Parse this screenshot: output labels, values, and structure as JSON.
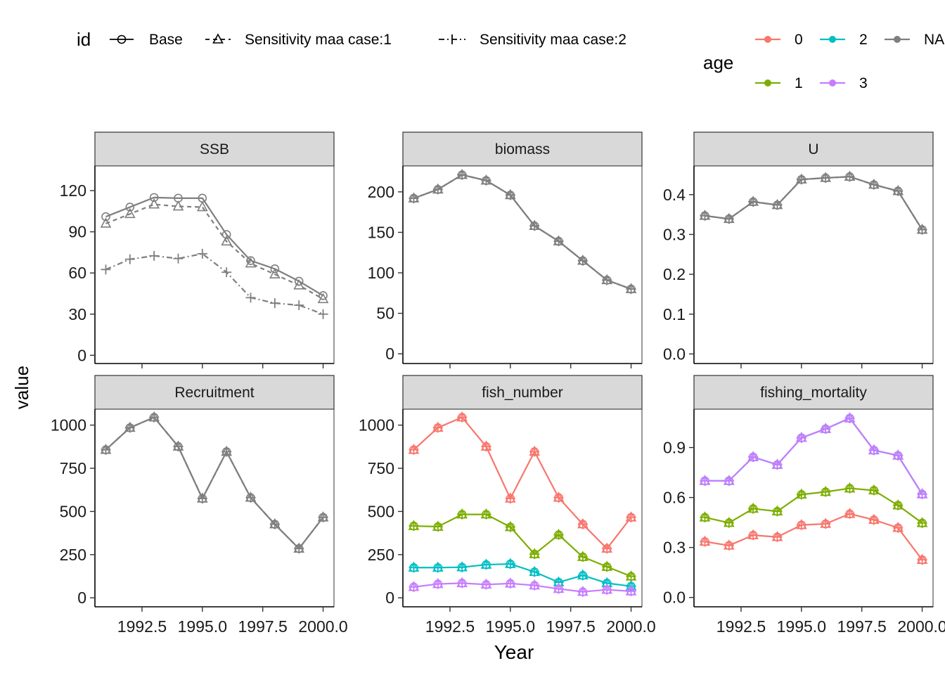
{
  "colors": {
    "age_0": "#F8766D",
    "age_1": "#7CAE00",
    "age_2": "#00BFC4",
    "age_3": "#C77CFF",
    "age_NA": "#7F7F7F",
    "strip_fill": "#D9D9D9"
  },
  "legend": {
    "id_title": "id",
    "id_items": [
      "Base",
      "Sensitivity maa case:1",
      "Sensitivity maa case:2"
    ],
    "age_title": "age",
    "age_items": [
      "0",
      "2",
      "NA",
      "1",
      "3"
    ]
  },
  "axes": {
    "xlabel": "Year",
    "ylabel": "value",
    "x_ticks": [
      "1992.5",
      "1995.0",
      "1997.5",
      "2000.0"
    ]
  },
  "chart_data": [
    {
      "type": "line",
      "title": "SSB",
      "x": [
        1991,
        1992,
        1993,
        1994,
        1995,
        1996,
        1997,
        1998,
        1999,
        2000
      ],
      "ylim": [
        -6,
        138
      ],
      "y_ticks": [
        "0",
        "30",
        "60",
        "90",
        "120"
      ],
      "series": [
        {
          "name": "Base",
          "age": "NA",
          "values": [
            101,
            108,
            115,
            114.5,
            114.5,
            88,
            69,
            63,
            54,
            43.5
          ]
        },
        {
          "name": "Sensitivity maa case:1",
          "age": "NA",
          "values": [
            96,
            103,
            110,
            108.5,
            108,
            83,
            67,
            59,
            51,
            41
          ]
        },
        {
          "name": "Sensitivity maa case:2",
          "age": "NA",
          "values": [
            62.5,
            70,
            72.5,
            70.5,
            74,
            60.5,
            42,
            38,
            36.5,
            30
          ]
        }
      ]
    },
    {
      "type": "line",
      "title": "biomass",
      "x": [
        1991,
        1992,
        1993,
        1994,
        1995,
        1996,
        1997,
        1998,
        1999,
        2000
      ],
      "ylim": [
        -12,
        232
      ],
      "y_ticks": [
        "0",
        "50",
        "100",
        "150",
        "200"
      ],
      "series": [
        {
          "name": "Base",
          "age": "NA",
          "values": [
            192,
            203,
            221,
            214,
            196,
            158,
            139,
            115,
            91,
            80
          ]
        },
        {
          "name": "Sensitivity maa case:1",
          "age": "NA",
          "values": [
            192,
            203,
            221,
            214,
            196,
            158,
            139,
            115,
            91,
            80
          ]
        },
        {
          "name": "Sensitivity maa case:2",
          "age": "NA",
          "values": [
            192,
            203,
            221,
            214,
            196,
            158,
            139,
            115,
            91,
            80
          ]
        }
      ]
    },
    {
      "type": "line",
      "title": "U",
      "x": [
        1991,
        1992,
        1993,
        1994,
        1995,
        1996,
        1997,
        1998,
        1999,
        2000
      ],
      "ylim": [
        -0.024,
        0.472
      ],
      "y_ticks": [
        "0.0",
        "0.1",
        "0.2",
        "0.3",
        "0.4"
      ],
      "series": [
        {
          "name": "Base",
          "age": "NA",
          "values": [
            0.347,
            0.339,
            0.382,
            0.374,
            0.438,
            0.442,
            0.445,
            0.425,
            0.409,
            0.312
          ]
        },
        {
          "name": "Sensitivity maa case:1",
          "age": "NA",
          "values": [
            0.347,
            0.339,
            0.382,
            0.374,
            0.438,
            0.442,
            0.445,
            0.425,
            0.409,
            0.312
          ]
        },
        {
          "name": "Sensitivity maa case:2",
          "age": "NA",
          "values": [
            0.347,
            0.339,
            0.382,
            0.374,
            0.438,
            0.442,
            0.445,
            0.425,
            0.409,
            0.312
          ]
        }
      ]
    },
    {
      "type": "line",
      "title": "Recruitment",
      "x": [
        1991,
        1992,
        1993,
        1994,
        1995,
        1996,
        1997,
        1998,
        1999,
        2000
      ],
      "ylim": [
        -52,
        1092
      ],
      "y_ticks": [
        "0",
        "250",
        "500",
        "750",
        "1000"
      ],
      "series": [
        {
          "name": "Base",
          "age": "NA",
          "values": [
            857,
            985,
            1045,
            876,
            575,
            846,
            580,
            426,
            285,
            466
          ]
        },
        {
          "name": "Sensitivity maa case:1",
          "age": "NA",
          "values": [
            857,
            985,
            1045,
            876,
            575,
            846,
            580,
            426,
            285,
            466
          ]
        },
        {
          "name": "Sensitivity maa case:2",
          "age": "NA",
          "values": [
            857,
            985,
            1045,
            876,
            575,
            846,
            580,
            426,
            285,
            466
          ]
        }
      ]
    },
    {
      "type": "line",
      "title": "fish_number",
      "x": [
        1991,
        1992,
        1993,
        1994,
        1995,
        1996,
        1997,
        1998,
        1999,
        2000
      ],
      "ylim": [
        -52,
        1092
      ],
      "y_ticks": [
        "0",
        "250",
        "500",
        "750",
        "1000"
      ],
      "series": [
        {
          "name": "Base",
          "age": "0",
          "values": [
            857,
            985,
            1045,
            876,
            575,
            846,
            580,
            426,
            285,
            466
          ]
        },
        {
          "name": "Base",
          "age": "1",
          "values": [
            416,
            412,
            483,
            483,
            410,
            253,
            365,
            237,
            180,
            124
          ]
        },
        {
          "name": "Base",
          "age": "2",
          "values": [
            175,
            175,
            177,
            192,
            196,
            150,
            90,
            130,
            85,
            67
          ]
        },
        {
          "name": "Base",
          "age": "3",
          "values": [
            63,
            80,
            85,
            77,
            83,
            72,
            52,
            35,
            47,
            38
          ]
        }
      ]
    },
    {
      "type": "line",
      "title": "fishing_mortality",
      "x": [
        1991,
        1992,
        1993,
        1994,
        1995,
        1996,
        1997,
        1998,
        1999,
        2000
      ],
      "ylim": [
        -0.056,
        1.13
      ],
      "y_ticks": [
        "0.0",
        "0.3",
        "0.6",
        "0.9"
      ],
      "series": [
        {
          "name": "Base",
          "age": "0",
          "values": [
            0.335,
            0.312,
            0.374,
            0.363,
            0.435,
            0.442,
            0.502,
            0.466,
            0.418,
            0.226
          ]
        },
        {
          "name": "Base",
          "age": "1",
          "values": [
            0.481,
            0.448,
            0.533,
            0.517,
            0.618,
            0.634,
            0.655,
            0.643,
            0.553,
            0.447
          ]
        },
        {
          "name": "Base",
          "age": "2",
          "values": [
            0.7,
            0.7,
            0.843,
            0.797,
            0.958,
            1.012,
            1.076,
            0.884,
            0.852,
            0.62
          ]
        },
        {
          "name": "Base",
          "age": "3",
          "values": [
            0.7,
            0.7,
            0.843,
            0.797,
            0.958,
            1.012,
            1.076,
            0.884,
            0.852,
            0.62
          ]
        }
      ]
    }
  ]
}
